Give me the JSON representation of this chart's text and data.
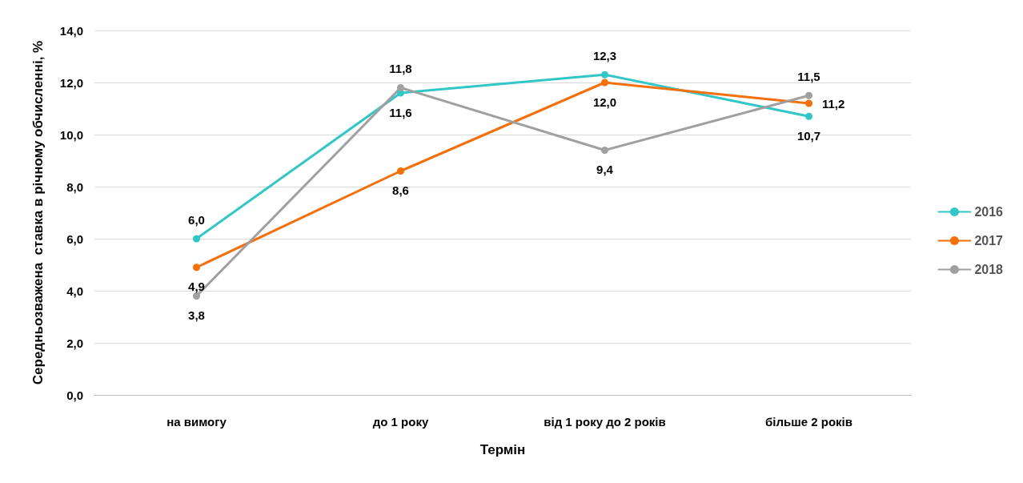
{
  "chart_data": {
    "type": "line",
    "xlabel": "Термін",
    "ylabel": "Середньозважена  ставка в річному обчисленні, %",
    "categories": [
      "на вимогу",
      "до 1 року",
      "від 1 року до 2 років",
      "більше 2 років"
    ],
    "series": [
      {
        "name": "2016",
        "color": "#33c6c6",
        "values": [
          6.0,
          11.6,
          12.3,
          10.7
        ],
        "value_labels": [
          "6,0",
          "11,6",
          "12,3",
          "10,7"
        ]
      },
      {
        "name": "2017",
        "color": "#f4700c",
        "values": [
          4.9,
          8.6,
          12.0,
          11.2
        ],
        "value_labels": [
          "4,9",
          "8,6",
          "12,0",
          "11,2"
        ]
      },
      {
        "name": "2018",
        "color": "#a0a0a0",
        "values": [
          3.8,
          11.8,
          9.4,
          11.5
        ],
        "value_labels": [
          "3,8",
          "11,8",
          "9,4",
          "11,5"
        ]
      }
    ],
    "ylim": [
      0,
      14
    ],
    "yticks": [
      {
        "value": 0,
        "label": "0,0"
      },
      {
        "value": 2,
        "label": "2,0"
      },
      {
        "value": 4,
        "label": "4,0"
      },
      {
        "value": 6,
        "label": "6,0"
      },
      {
        "value": 8,
        "label": "8,0"
      },
      {
        "value": 10,
        "label": "10,0"
      },
      {
        "value": 12,
        "label": "12,0"
      },
      {
        "value": 14,
        "label": "14,0"
      }
    ],
    "grid": "y",
    "legend": "right",
    "marker": "circle",
    "line_style": "solid"
  }
}
